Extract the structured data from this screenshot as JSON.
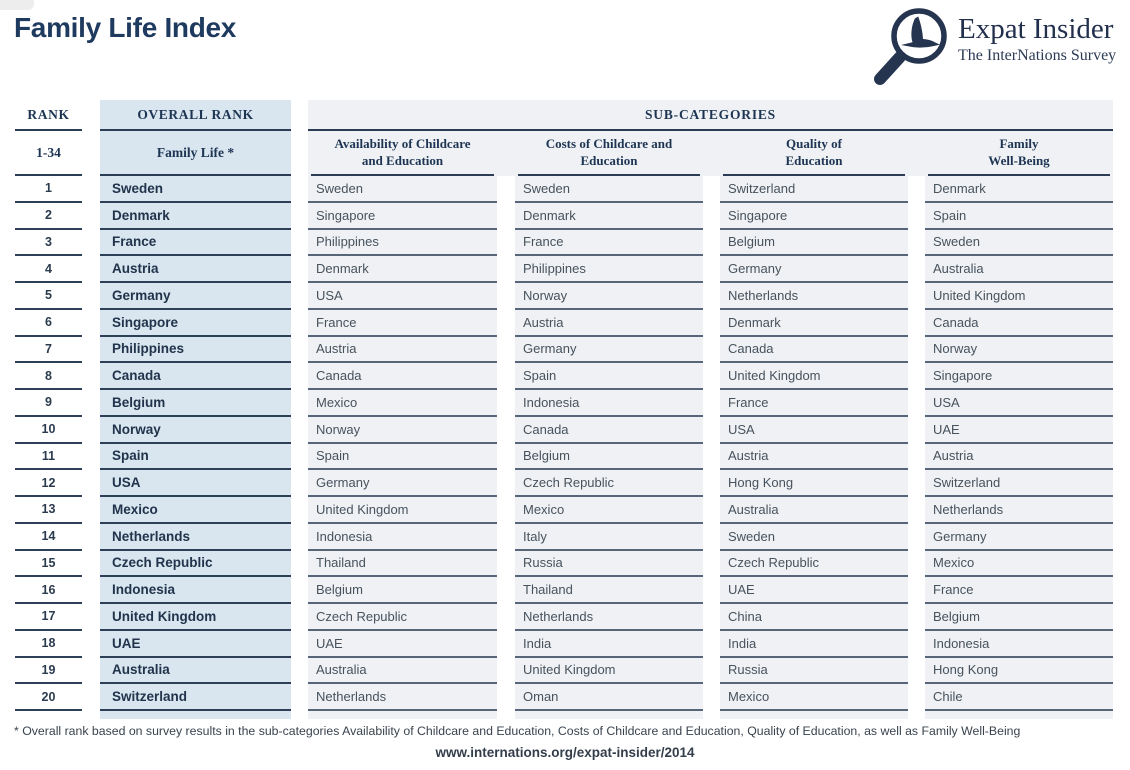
{
  "page": {
    "title": "Family Life Index",
    "footnote": "* Overall rank based on survey results in the sub-categories Availability of Childcare and Education, Costs of Childcare and Education, Quality of Education, as well as Family Well-Being",
    "url": "www.internations.org/expat-insider/2014"
  },
  "logo": {
    "name": "Expat Insider",
    "tagline": "The InterNations Survey",
    "icon": "magnifier-bird-icon",
    "color": "#25344f"
  },
  "chart_data": {
    "type": "table",
    "title": "Family Life Index",
    "rank_column": {
      "header": "RANK",
      "range": "1-34"
    },
    "overall_column": {
      "header": "OVERALL RANK",
      "subheader": "Family Life *"
    },
    "subcategories_header": "SUB-CATEGORIES",
    "subcolumns": [
      "Availability of Childcare\nand Education",
      "Costs of Childcare and\nEducation",
      "Quality of\nEducation",
      "Family\nWell-Being"
    ],
    "rows": [
      {
        "rank": "1",
        "family_life": "Sweden",
        "availability": "Sweden",
        "costs": "Sweden",
        "quality": "Switzerland",
        "well_being": "Denmark"
      },
      {
        "rank": "2",
        "family_life": "Denmark",
        "availability": "Singapore",
        "costs": "Denmark",
        "quality": "Singapore",
        "well_being": "Spain"
      },
      {
        "rank": "3",
        "family_life": "France",
        "availability": "Philippines",
        "costs": "France",
        "quality": "Belgium",
        "well_being": "Sweden"
      },
      {
        "rank": "4",
        "family_life": "Austria",
        "availability": "Denmark",
        "costs": "Philippines",
        "quality": "Germany",
        "well_being": "Australia"
      },
      {
        "rank": "5",
        "family_life": "Germany",
        "availability": "USA",
        "costs": "Norway",
        "quality": "Netherlands",
        "well_being": "United Kingdom"
      },
      {
        "rank": "6",
        "family_life": "Singapore",
        "availability": "France",
        "costs": "Austria",
        "quality": "Denmark",
        "well_being": "Canada"
      },
      {
        "rank": "7",
        "family_life": "Philippines",
        "availability": "Austria",
        "costs": "Germany",
        "quality": "Canada",
        "well_being": "Norway"
      },
      {
        "rank": "8",
        "family_life": "Canada",
        "availability": "Canada",
        "costs": "Spain",
        "quality": "United Kingdom",
        "well_being": "Singapore"
      },
      {
        "rank": "9",
        "family_life": "Belgium",
        "availability": "Mexico",
        "costs": "Indonesia",
        "quality": "France",
        "well_being": "USA"
      },
      {
        "rank": "10",
        "family_life": "Norway",
        "availability": "Norway",
        "costs": "Canada",
        "quality": "USA",
        "well_being": "UAE"
      },
      {
        "rank": "11",
        "family_life": "Spain",
        "availability": "Spain",
        "costs": "Belgium",
        "quality": "Austria",
        "well_being": "Austria"
      },
      {
        "rank": "12",
        "family_life": "USA",
        "availability": "Germany",
        "costs": "Czech Republic",
        "quality": "Hong Kong",
        "well_being": "Switzerland"
      },
      {
        "rank": "13",
        "family_life": "Mexico",
        "availability": "United Kingdom",
        "costs": "Mexico",
        "quality": "Australia",
        "well_being": "Netherlands"
      },
      {
        "rank": "14",
        "family_life": "Netherlands",
        "availability": "Indonesia",
        "costs": "Italy",
        "quality": "Sweden",
        "well_being": "Germany"
      },
      {
        "rank": "15",
        "family_life": "Czech Republic",
        "availability": "Thailand",
        "costs": "Russia",
        "quality": "Czech Republic",
        "well_being": "Mexico"
      },
      {
        "rank": "16",
        "family_life": "Indonesia",
        "availability": "Belgium",
        "costs": "Thailand",
        "quality": "UAE",
        "well_being": "France"
      },
      {
        "rank": "17",
        "family_life": "United Kingdom",
        "availability": "Czech Republic",
        "costs": "Netherlands",
        "quality": "China",
        "well_being": "Belgium"
      },
      {
        "rank": "18",
        "family_life": "UAE",
        "availability": "UAE",
        "costs": "India",
        "quality": "India",
        "well_being": "Indonesia"
      },
      {
        "rank": "19",
        "family_life": "Australia",
        "availability": "Australia",
        "costs": "United Kingdom",
        "quality": "Russia",
        "well_being": "Hong Kong"
      },
      {
        "rank": "20",
        "family_life": "Switzerland",
        "availability": "Netherlands",
        "costs": "Oman",
        "quality": "Mexico",
        "well_being": "Chile"
      }
    ]
  },
  "colors": {
    "navy_title": "#1e3a5e",
    "header_text": "#1d3553",
    "blue_column_bg": "#d9e5ef",
    "subcategory_bg": "#eff1f4",
    "dark_line": "#2b3d55",
    "sub_line": "#566578",
    "country_text": "#47525d",
    "bold_country_text": "#21344b"
  }
}
